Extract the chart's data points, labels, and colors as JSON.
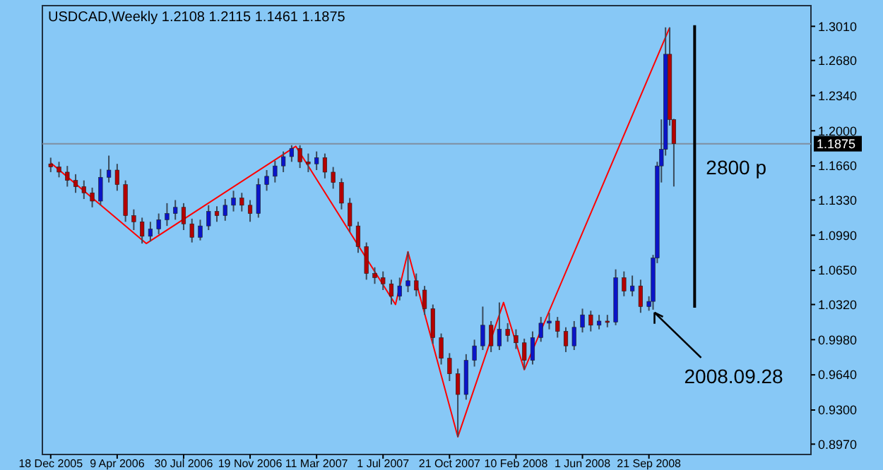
{
  "chart_data": {
    "type": "candlestick",
    "title": "USDCAD,Weekly  1.2108 1.2115 1.1461 1.1875",
    "x": [
      "2005-12-18",
      "2006-01-01",
      "2006-01-15",
      "2006-01-29",
      "2006-02-12",
      "2006-02-26",
      "2006-03-12",
      "2006-03-26",
      "2006-04-09",
      "2006-04-23",
      "2006-05-07",
      "2006-05-21",
      "2006-06-04",
      "2006-06-18",
      "2006-07-02",
      "2006-07-16",
      "2006-07-30",
      "2006-08-13",
      "2006-08-27",
      "2006-09-10",
      "2006-09-24",
      "2006-10-08",
      "2006-10-22",
      "2006-11-05",
      "2006-11-19",
      "2006-12-03",
      "2006-12-17",
      "2006-12-31",
      "2007-01-14",
      "2007-01-28",
      "2007-02-11",
      "2007-02-25",
      "2007-03-11",
      "2007-03-25",
      "2007-04-08",
      "2007-04-22",
      "2007-05-06",
      "2007-05-20",
      "2007-06-03",
      "2007-06-17",
      "2007-07-01",
      "2007-07-15",
      "2007-07-29",
      "2007-08-12",
      "2007-08-26",
      "2007-09-09",
      "2007-09-23",
      "2007-10-07",
      "2007-10-21",
      "2007-11-04",
      "2007-11-18",
      "2007-12-02",
      "2007-12-16",
      "2007-12-30",
      "2008-01-13",
      "2008-01-27",
      "2008-02-10",
      "2008-02-24",
      "2008-03-09",
      "2008-03-23",
      "2008-04-06",
      "2008-04-20",
      "2008-05-04",
      "2008-05-18",
      "2008-06-01",
      "2008-06-15",
      "2008-06-29",
      "2008-07-13",
      "2008-07-27",
      "2008-08-10",
      "2008-08-24",
      "2008-09-07",
      "2008-09-21",
      "2008-09-28",
      "2008-10-05",
      "2008-10-12",
      "2008-10-19",
      "2008-10-26",
      "2008-11-02"
    ],
    "ohlc": [
      [
        1.168,
        1.174,
        1.16,
        1.165
      ],
      [
        1.165,
        1.17,
        1.155,
        1.16
      ],
      [
        1.16,
        1.166,
        1.146,
        1.152
      ],
      [
        1.152,
        1.158,
        1.14,
        1.146
      ],
      [
        1.146,
        1.152,
        1.134,
        1.14
      ],
      [
        1.14,
        1.145,
        1.126,
        1.132
      ],
      [
        1.132,
        1.163,
        1.128,
        1.155
      ],
      [
        1.155,
        1.176,
        1.15,
        1.162
      ],
      [
        1.162,
        1.168,
        1.142,
        1.148
      ],
      [
        1.148,
        1.152,
        1.112,
        1.118
      ],
      [
        1.118,
        1.124,
        1.104,
        1.112
      ],
      [
        1.112,
        1.116,
        1.091,
        1.098
      ],
      [
        1.098,
        1.112,
        1.093,
        1.105
      ],
      [
        1.105,
        1.12,
        1.1,
        1.114
      ],
      [
        1.114,
        1.13,
        1.108,
        1.12
      ],
      [
        1.12,
        1.133,
        1.114,
        1.126
      ],
      [
        1.126,
        1.13,
        1.104,
        1.11
      ],
      [
        1.11,
        1.115,
        1.092,
        1.097
      ],
      [
        1.097,
        1.114,
        1.094,
        1.108
      ],
      [
        1.108,
        1.128,
        1.104,
        1.122
      ],
      [
        1.122,
        1.127,
        1.112,
        1.118
      ],
      [
        1.118,
        1.134,
        1.113,
        1.128
      ],
      [
        1.128,
        1.142,
        1.122,
        1.135
      ],
      [
        1.135,
        1.14,
        1.122,
        1.128
      ],
      [
        1.128,
        1.133,
        1.112,
        1.12
      ],
      [
        1.12,
        1.154,
        1.116,
        1.148
      ],
      [
        1.148,
        1.162,
        1.142,
        1.156
      ],
      [
        1.156,
        1.171,
        1.15,
        1.166
      ],
      [
        1.166,
        1.18,
        1.16,
        1.175
      ],
      [
        1.175,
        1.186,
        1.17,
        1.183
      ],
      [
        1.183,
        1.186,
        1.164,
        1.17
      ],
      [
        1.17,
        1.178,
        1.16,
        1.168
      ],
      [
        1.168,
        1.18,
        1.162,
        1.174
      ],
      [
        1.174,
        1.178,
        1.154,
        1.16
      ],
      [
        1.16,
        1.165,
        1.144,
        1.15
      ],
      [
        1.15,
        1.154,
        1.124,
        1.13
      ],
      [
        1.13,
        1.135,
        1.102,
        1.108
      ],
      [
        1.108,
        1.112,
        1.082,
        1.088
      ],
      [
        1.088,
        1.092,
        1.056,
        1.062
      ],
      [
        1.062,
        1.068,
        1.052,
        1.058
      ],
      [
        1.058,
        1.064,
        1.046,
        1.052
      ],
      [
        1.052,
        1.056,
        1.032,
        1.04
      ],
      [
        1.04,
        1.058,
        1.036,
        1.05
      ],
      [
        1.05,
        1.083,
        1.044,
        1.055
      ],
      [
        1.055,
        1.062,
        1.04,
        1.046
      ],
      [
        1.046,
        1.05,
        1.022,
        1.028
      ],
      [
        1.028,
        1.032,
        0.994,
        1.0
      ],
      [
        1.0,
        1.004,
        0.974,
        0.98
      ],
      [
        0.98,
        0.985,
        0.958,
        0.965
      ],
      [
        0.965,
        0.97,
        0.904,
        0.945
      ],
      [
        0.945,
        0.984,
        0.94,
        0.978
      ],
      [
        0.978,
        0.998,
        0.972,
        0.992
      ],
      [
        0.992,
        1.03,
        0.988,
        1.012
      ],
      [
        1.012,
        1.016,
        0.986,
        0.992
      ],
      [
        0.992,
        1.034,
        0.988,
        1.008
      ],
      [
        1.008,
        1.014,
        0.996,
        1.002
      ],
      [
        1.002,
        1.008,
        0.989,
        0.995
      ],
      [
        0.995,
        0.999,
        0.969,
        0.978
      ],
      [
        0.978,
        1.006,
        0.974,
        1.0
      ],
      [
        1.0,
        1.02,
        0.996,
        1.014
      ],
      [
        1.014,
        1.024,
        1.008,
        1.016
      ],
      [
        1.016,
        1.02,
        1.0,
        1.006
      ],
      [
        1.006,
        1.01,
        0.986,
        0.992
      ],
      [
        0.992,
        1.016,
        0.988,
        1.01
      ],
      [
        1.01,
        1.028,
        1.005,
        1.022
      ],
      [
        1.022,
        1.026,
        1.006,
        1.012
      ],
      [
        1.012,
        1.022,
        1.008,
        1.016
      ],
      [
        1.016,
        1.022,
        1.01,
        1.015
      ],
      [
        1.015,
        1.066,
        1.012,
        1.058
      ],
      [
        1.058,
        1.064,
        1.04,
        1.045
      ],
      [
        1.045,
        1.06,
        1.04,
        1.05
      ],
      [
        1.05,
        1.056,
        1.024,
        1.03
      ],
      [
        1.03,
        1.04,
        1.026,
        1.035
      ],
      [
        1.035,
        1.08,
        1.027,
        1.077
      ],
      [
        1.077,
        1.17,
        1.072,
        1.166
      ],
      [
        1.166,
        1.211,
        1.15,
        1.182
      ],
      [
        1.182,
        1.3,
        1.176,
        1.274
      ],
      [
        1.274,
        1.3,
        1.205,
        1.2108
      ],
      [
        1.2108,
        1.2115,
        1.1461,
        1.1875
      ]
    ],
    "series": [
      {
        "type": "line",
        "color": "#ff0000",
        "x": [
          "2005-12-18",
          "2006-05-28",
          "2007-02-04",
          "2007-07-22",
          "2007-08-12",
          "2007-11-04",
          "2008-01-20",
          "2008-02-24",
          "2008-10-26"
        ],
        "values": [
          1.169,
          1.091,
          1.185,
          1.032,
          1.083,
          0.904,
          1.034,
          0.969,
          1.3
        ]
      },
      {
        "type": "line",
        "color": "#000000",
        "x": [
          "2008-12-07",
          "2008-12-07"
        ],
        "values": [
          1.302,
          1.029
        ]
      }
    ],
    "xlim": [
      "2005-12-04",
      "2009-06-21"
    ],
    "xticks": [
      {
        "value": "2005-12-18",
        "label": "18 Dec 2005"
      },
      {
        "value": "2006-04-09",
        "label": "9 Apr 2006"
      },
      {
        "value": "2006-07-30",
        "label": "30 Jul 2006"
      },
      {
        "value": "2006-11-19",
        "label": "19 Nov 2006"
      },
      {
        "value": "2007-03-11",
        "label": "11 Mar 2007"
      },
      {
        "value": "2007-07-01",
        "label": "1 Jul 2007"
      },
      {
        "value": "2007-10-21",
        "label": "21 Oct 2007"
      },
      {
        "value": "2008-02-10",
        "label": "10 Feb 2008"
      },
      {
        "value": "2008-06-01",
        "label": "1 Jun 2008"
      },
      {
        "value": "2008-09-21",
        "label": "21 Sep 2008"
      }
    ],
    "ylim": [
      0.887,
      1.321
    ],
    "yticks": [
      {
        "value": 1.301,
        "label": "1.3010"
      },
      {
        "value": 1.268,
        "label": "1.2680"
      },
      {
        "value": 1.234,
        "label": "1.2340"
      },
      {
        "value": 1.2,
        "label": "1.2000"
      },
      {
        "value": 1.166,
        "label": "1.1660"
      },
      {
        "value": 1.133,
        "label": "1.1330"
      },
      {
        "value": 1.099,
        "label": "1.0990"
      },
      {
        "value": 1.065,
        "label": "1.0650"
      },
      {
        "value": 1.032,
        "label": "1.0320"
      },
      {
        "value": 0.998,
        "label": "0.9980"
      },
      {
        "value": 0.964,
        "label": "0.9640"
      },
      {
        "value": 0.93,
        "label": "0.9300"
      },
      {
        "value": 0.897,
        "label": "0.8970"
      }
    ],
    "ref_lines": [
      {
        "axis": "y",
        "value": 1.1875,
        "label": "1.1875",
        "color": "#7f8fa0"
      }
    ],
    "annotations": [
      {
        "text": "2800 p",
        "x": "2008-12-07",
        "y": 1.165
      },
      {
        "text": "2008.09.28",
        "x": "2008-09-28",
        "y": 1.027
      }
    ],
    "grid": false
  }
}
